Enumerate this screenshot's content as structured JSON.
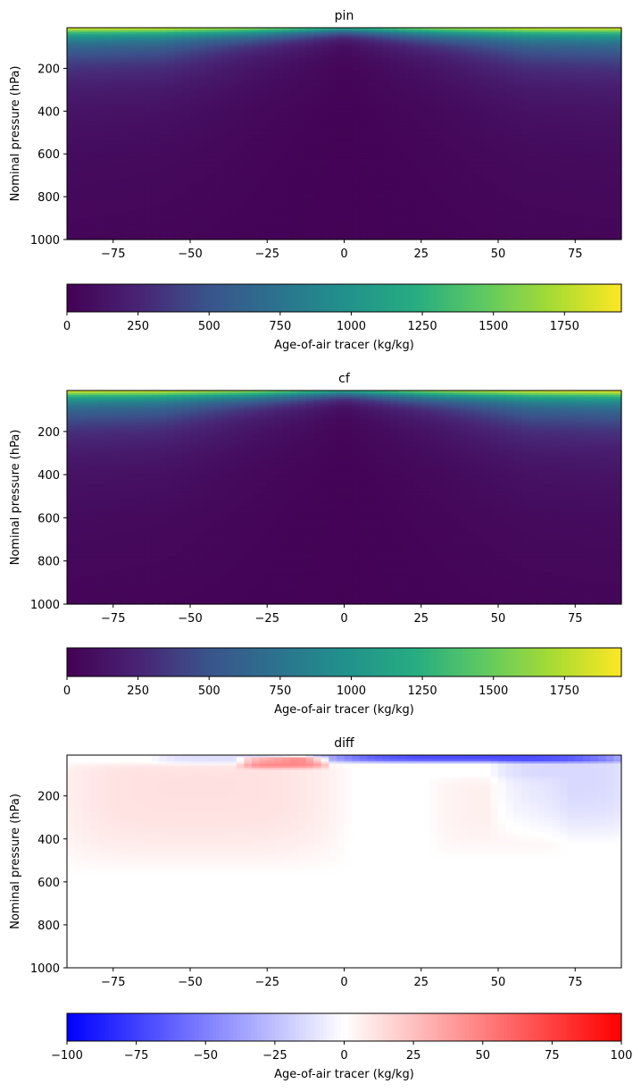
{
  "chart_data": [
    {
      "type": "heatmap",
      "title": "pin",
      "xlabel": "",
      "ylabel": "Nominal pressure (hPa)",
      "xlim": [
        -90,
        90
      ],
      "ylim": [
        1000,
        10
      ],
      "x_ticks": [
        -75,
        -50,
        -25,
        0,
        25,
        50,
        75
      ],
      "y_ticks": [
        200,
        400,
        600,
        800,
        1000
      ],
      "colormap": "viridis",
      "colorbar": {
        "label": "Age-of-air tracer (kg/kg)",
        "range": [
          0,
          1950
        ],
        "ticks": [
          0,
          250,
          500,
          750,
          1000,
          1250,
          1500,
          1750
        ]
      },
      "field": {
        "description_profile_pressure_hPa": [
          10,
          20,
          35,
          50,
          70,
          100,
          150,
          200,
          300,
          400,
          600,
          1000
        ],
        "value_at_lat": [
          {
            "lat": -90,
            "values": [
              1950,
              1700,
              1300,
              1050,
              850,
              650,
              460,
              330,
              200,
              140,
              80,
              40
            ]
          },
          {
            "lat": -60,
            "values": [
              1900,
              1650,
              1250,
              1000,
              800,
              600,
              420,
              300,
              180,
              120,
              70,
              35
            ]
          },
          {
            "lat": -30,
            "values": [
              1750,
              1400,
              1000,
              750,
              520,
              330,
              200,
              140,
              90,
              60,
              40,
              25
            ]
          },
          {
            "lat": 0,
            "values": [
              1300,
              900,
              550,
              330,
              180,
              90,
              50,
              35,
              25,
              20,
              15,
              10
            ]
          },
          {
            "lat": 30,
            "values": [
              1750,
              1400,
              1000,
              750,
              520,
              330,
              200,
              140,
              90,
              60,
              40,
              25
            ]
          },
          {
            "lat": 60,
            "values": [
              1900,
              1650,
              1250,
              1000,
              800,
              600,
              420,
              300,
              180,
              120,
              70,
              35
            ]
          },
          {
            "lat": 90,
            "values": [
              1950,
              1700,
              1300,
              1050,
              850,
              650,
              460,
              330,
              200,
              140,
              80,
              40
            ]
          }
        ]
      }
    },
    {
      "type": "heatmap",
      "title": "cf",
      "xlabel": "",
      "ylabel": "Nominal pressure (hPa)",
      "xlim": [
        -90,
        90
      ],
      "ylim": [
        1000,
        10
      ],
      "x_ticks": [
        -75,
        -50,
        -25,
        0,
        25,
        50,
        75
      ],
      "y_ticks": [
        200,
        400,
        600,
        800,
        1000
      ],
      "colormap": "viridis",
      "colorbar": {
        "label": "Age-of-air tracer (kg/kg)",
        "range": [
          0,
          1950
        ],
        "ticks": [
          0,
          250,
          500,
          750,
          1000,
          1250,
          1500,
          1750
        ]
      },
      "field": {
        "description_profile_pressure_hPa": [
          10,
          20,
          35,
          50,
          70,
          100,
          150,
          200,
          300,
          400,
          600,
          1000
        ],
        "value_at_lat": [
          {
            "lat": -90,
            "values": [
              1950,
              1700,
              1300,
              1050,
              850,
              650,
              450,
              320,
              190,
              130,
              75,
              38
            ]
          },
          {
            "lat": -60,
            "values": [
              1900,
              1650,
              1250,
              1000,
              800,
              600,
              410,
              290,
              170,
              115,
              65,
              33
            ]
          },
          {
            "lat": -30,
            "values": [
              1750,
              1400,
              1000,
              750,
              520,
              330,
              195,
              135,
              85,
              58,
              38,
              24
            ]
          },
          {
            "lat": 0,
            "values": [
              1300,
              900,
              550,
              330,
              180,
              90,
              50,
              35,
              25,
              20,
              15,
              10
            ]
          },
          {
            "lat": 30,
            "values": [
              1750,
              1400,
              1000,
              750,
              520,
              330,
              200,
              140,
              90,
              60,
              40,
              25
            ]
          },
          {
            "lat": 60,
            "values": [
              1920,
              1670,
              1270,
              1020,
              820,
              620,
              430,
              305,
              182,
              121,
              70,
              35
            ]
          },
          {
            "lat": 90,
            "values": [
              1990,
              1760,
              1360,
              1100,
              890,
              680,
              470,
              335,
              202,
              141,
              80,
              40
            ]
          }
        ]
      }
    },
    {
      "type": "heatmap",
      "title": "diff",
      "xlabel": "",
      "ylabel": "Nominal pressure (hPa)",
      "xlim": [
        -90,
        90
      ],
      "ylim": [
        1000,
        10
      ],
      "x_ticks": [
        -75,
        -50,
        -25,
        0,
        25,
        50,
        75
      ],
      "y_ticks": [
        200,
        400,
        600,
        800,
        1000
      ],
      "colormap": "bwr",
      "colorbar": {
        "label": "Age-of-air tracer (kg/kg)",
        "range": [
          -100,
          100
        ],
        "ticks": [
          -100,
          -75,
          -50,
          -25,
          0,
          25,
          50,
          75,
          100
        ]
      },
      "features": [
        {
          "kind": "positive_band",
          "lat_range": [
            -90,
            -5
          ],
          "p_range": [
            60,
            400
          ],
          "value": 12
        },
        {
          "kind": "positive_spot",
          "lat_range": [
            -27,
            -12
          ],
          "p_range": [
            25,
            55
          ],
          "value": 45
        },
        {
          "kind": "negative_band",
          "lat_range": [
            -5,
            90
          ],
          "p_range": [
            10,
            35
          ],
          "value": -70
        },
        {
          "kind": "negative_band",
          "lat_range": [
            55,
            90
          ],
          "p_range": [
            35,
            300
          ],
          "value": -15
        },
        {
          "kind": "negative_band",
          "lat_range": [
            -55,
            -25
          ],
          "p_range": [
            10,
            40
          ],
          "value": -12
        },
        {
          "kind": "positive_band",
          "lat_range": [
            35,
            65
          ],
          "p_range": [
            150,
            350
          ],
          "value": 6
        }
      ]
    }
  ]
}
